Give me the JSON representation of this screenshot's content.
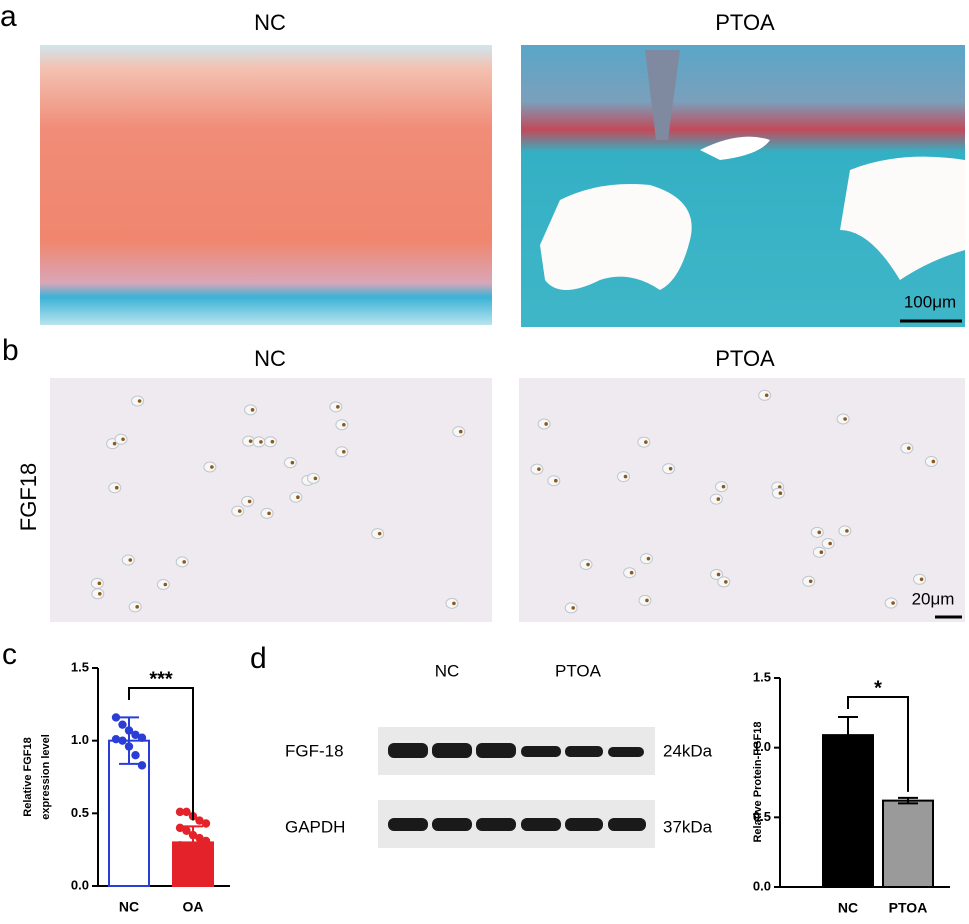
{
  "panel_labels": [
    "a",
    "b",
    "c",
    "d"
  ],
  "histology": {
    "titles": [
      "NC",
      "PTOA"
    ],
    "scale_bar": "100μm"
  },
  "ihc": {
    "titles": [
      "NC",
      "PTOA"
    ],
    "row_label": "FGF18",
    "scale_bar": "20μm"
  },
  "blot": {
    "groups": [
      "NC",
      "PTOA"
    ],
    "rows": [
      {
        "protein": "FGF-18",
        "size": "24kDa"
      },
      {
        "protein": "GAPDH",
        "size": "37kDa"
      }
    ]
  },
  "chart_data": [
    {
      "type": "bar",
      "ylabel": [
        "Relative FGF18",
        "expression level"
      ],
      "categories": [
        "NC",
        "OA"
      ],
      "values": [
        1.0,
        0.3
      ],
      "errors": [
        0.16,
        0.11
      ],
      "colors": [
        "#2a3ed6",
        "#e3222a"
      ],
      "fills": [
        "#ffffff",
        "#e3222a"
      ],
      "points": [
        [
          1.16,
          1.11,
          1.07,
          1.04,
          1.02,
          1.01,
          1.0,
          0.96,
          0.9,
          0.83
        ],
        [
          0.51,
          0.51,
          0.48,
          0.45,
          0.43,
          0.4,
          0.38,
          0.35,
          0.33,
          0.31,
          0.28,
          0.25,
          0.22,
          0.19,
          0.16,
          0.12,
          0.12
        ]
      ],
      "significance": "***",
      "ylim": [
        0,
        1.5
      ],
      "yticks": [
        {
          "value": 0,
          "label": "0.0"
        },
        0.5,
        {
          "value": 1,
          "label": "1.0"
        },
        1.5
      ]
    },
    {
      "type": "bar",
      "ylabel": [
        "Relative Protein-FGF18"
      ],
      "categories": [
        "NC",
        "PTOA"
      ],
      "values": [
        1.09,
        0.62
      ],
      "errors": [
        0.13,
        0.02
      ],
      "colors": [
        "#000000",
        "#000000"
      ],
      "fills": [
        "#000000",
        "#9a9a9a"
      ],
      "significance": "*",
      "ylim": [
        0,
        1.5
      ],
      "yticks": [
        {
          "value": 0,
          "label": "0.0"
        },
        0.5,
        {
          "value": 1,
          "label": "1.0"
        },
        1.5
      ]
    }
  ]
}
